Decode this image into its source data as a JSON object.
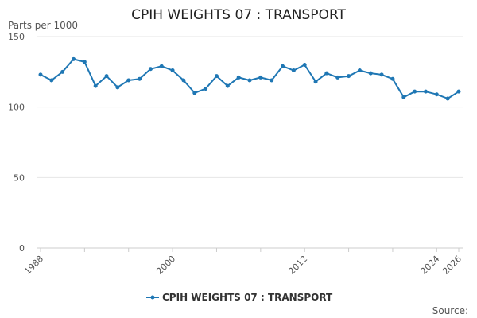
{
  "chart_data": {
    "type": "line",
    "title": "CPIH WEIGHTS 07 : TRANSPORT",
    "ylabel": "Parts per 1000",
    "ylim": [
      0,
      150
    ],
    "yticks": [
      0,
      50,
      100,
      150
    ],
    "xlim": [
      1988,
      2026
    ],
    "xticks": [
      1988,
      2000,
      2012,
      2024,
      2026
    ],
    "grid": true,
    "legend_position": "bottom",
    "series": [
      {
        "name": "CPIH WEIGHTS 07 : TRANSPORT",
        "color": "#1f77b4",
        "x": [
          1988,
          1989,
          1990,
          1991,
          1992,
          1993,
          1994,
          1995,
          1996,
          1997,
          1998,
          1999,
          2000,
          2001,
          2002,
          2003,
          2004,
          2005,
          2006,
          2007,
          2008,
          2009,
          2010,
          2011,
          2012,
          2013,
          2014,
          2015,
          2016,
          2017,
          2018,
          2019,
          2020,
          2021,
          2022,
          2023,
          2024,
          2025,
          2026
        ],
        "values": [
          123,
          119,
          125,
          134,
          132,
          115,
          122,
          114,
          119,
          120,
          127,
          129,
          126,
          119,
          110,
          113,
          122,
          115,
          121,
          119,
          121,
          119,
          129,
          126,
          130,
          118,
          124,
          121,
          122,
          126,
          124,
          123,
          120,
          107,
          111,
          111,
          109,
          106,
          111
        ]
      }
    ]
  },
  "source_label": "Source:"
}
